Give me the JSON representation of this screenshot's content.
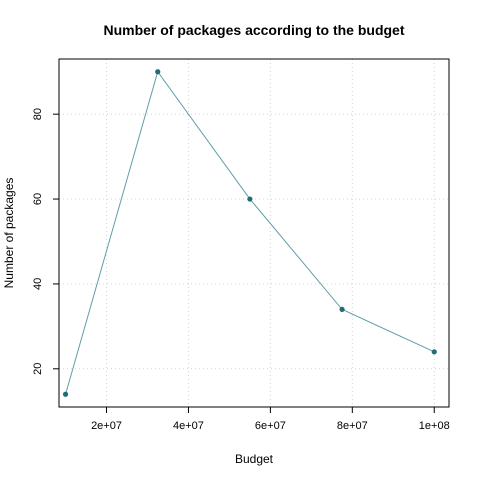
{
  "chart_data": {
    "type": "line",
    "title": "Number of packages according to the budget",
    "xlabel": "Budget",
    "ylabel": "Number of packages",
    "x": [
      10000000,
      32500000,
      55000000,
      77500000,
      100000000
    ],
    "series": [
      {
        "values": [
          14,
          90,
          60,
          34,
          24
        ]
      }
    ],
    "xlim": [
      8400000,
      103600000
    ],
    "ylim": [
      11,
      93
    ],
    "x_ticks": [
      20000000,
      40000000,
      60000000,
      80000000,
      100000000
    ],
    "x_tick_labels": [
      "2e+07",
      "4e+07",
      "6e+07",
      "8e+07",
      "1e+08"
    ],
    "y_ticks": [
      20,
      40,
      60,
      80
    ],
    "y_tick_labels": [
      "20",
      "40",
      "60",
      "80"
    ],
    "grid": true,
    "colors": {
      "line": "#5f9ea8",
      "point": "#236b78",
      "grid": "#d3d3d3"
    }
  }
}
